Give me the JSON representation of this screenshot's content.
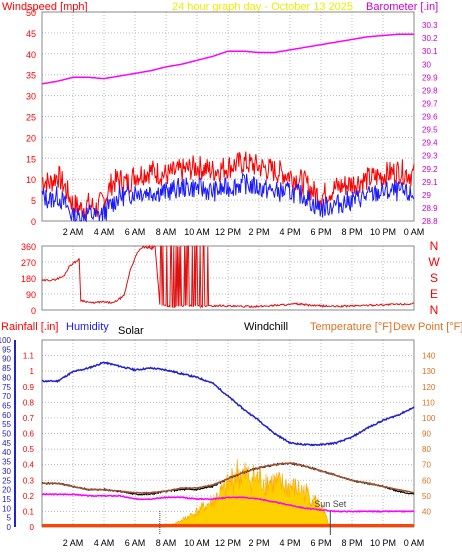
{
  "header": {
    "left_label": "Windspeed [mph]",
    "center_label": "24 hour graph day - October 13 2025",
    "right_label": "Barometer [.in]"
  },
  "lower_header": {
    "rain_label": "Rainfall [.in]",
    "humidity_label": "Humidity",
    "solar_label": "Solar",
    "windchill_label": "Windchill",
    "temp_label": "Temperature [°F]",
    "dew_label": "Dew Point [°F]"
  },
  "annotation": {
    "sunset": "Sun Set"
  },
  "colors": {
    "wind_gust": "#ff0000",
    "wind_avg": "#1a1aff",
    "barometer": "#ff00ff",
    "direction": "#dd1111",
    "humidity": "#2222cc",
    "temperature": "#a0522d",
    "windchill": "#000000",
    "dewpoint": "#ff00ff",
    "solar": "#ffd000",
    "solar_dark": "#ffa500",
    "rain": "#ff4400",
    "grid": "#bbbbbb",
    "axis_left": "#ff0000",
    "axis_right": "#cc00cc",
    "rain_axis": "#2222cc",
    "temp_axis": "#e07020"
  },
  "chart_data": [
    {
      "id": "wind",
      "type": "line",
      "xlabel": "",
      "x_ticks": [
        "2 AM",
        "4 AM",
        "6 AM",
        "8 AM",
        "10 AM",
        "12 PM",
        "2 PM",
        "4 PM",
        "6 PM",
        "8 PM",
        "10 PM",
        "0 AM"
      ],
      "ylabel_left": "Windspeed [mph]",
      "ylim_left": [
        0,
        50
      ],
      "y_ticks_left": [
        "0",
        "5",
        "10",
        "15",
        "20",
        "25",
        "30",
        "35",
        "40",
        "45",
        "50"
      ],
      "ylabel_right": "Barometer [.in]",
      "ylim_right": [
        28.8,
        30.4
      ],
      "y_ticks_right": [
        "28.8",
        "28.9",
        "29",
        "29.1",
        "29.2",
        "29.3",
        "29.4",
        "29.5",
        "29.6",
        "29.7",
        "29.8",
        "29.9",
        "30",
        "30.1",
        "30.2",
        "30.3"
      ],
      "grid": true,
      "series": [
        {
          "key": "gust",
          "x": [
            0,
            0.5,
            1,
            1.5,
            2,
            2.5,
            3,
            3.5,
            4,
            4.5,
            5,
            5.5,
            6,
            7,
            8,
            9,
            10,
            11,
            12,
            13,
            14,
            15,
            16,
            17,
            17.5,
            18,
            19,
            20,
            21,
            22,
            23,
            24
          ],
          "values": [
            10,
            9,
            11,
            8,
            4,
            3,
            4,
            3,
            5,
            9,
            10,
            9,
            11,
            12,
            11,
            12,
            13,
            12,
            13,
            14,
            13,
            12,
            11,
            9,
            7,
            6,
            8,
            9,
            10,
            11,
            12,
            11
          ]
        },
        {
          "key": "avg",
          "x": [
            0,
            0.5,
            1,
            1.5,
            2,
            2.5,
            3,
            3.5,
            4,
            4.5,
            5,
            5.5,
            6,
            7,
            8,
            9,
            10,
            11,
            12,
            13,
            14,
            15,
            16,
            17,
            17.5,
            18,
            19,
            20,
            21,
            22,
            23,
            24
          ],
          "values": [
            6,
            5,
            6,
            4,
            1,
            1,
            2,
            1,
            2,
            4,
            6,
            6,
            7,
            7,
            7,
            8,
            8,
            7,
            8,
            9,
            8,
            7,
            7,
            6,
            4,
            3,
            4,
            5,
            6,
            7,
            7,
            6
          ]
        },
        {
          "key": "barometer",
          "axis": "right",
          "x": [
            0,
            1,
            2,
            3,
            4,
            5,
            6,
            7,
            8,
            9,
            10,
            11,
            12,
            13,
            14,
            15,
            16,
            17,
            18,
            19,
            20,
            21,
            22,
            23,
            24
          ],
          "values": [
            29.85,
            29.87,
            29.9,
            29.9,
            29.89,
            29.91,
            29.93,
            29.95,
            29.98,
            30.0,
            30.03,
            30.06,
            30.1,
            30.1,
            30.09,
            30.09,
            30.11,
            30.13,
            30.15,
            30.17,
            30.19,
            30.21,
            30.22,
            30.23,
            30.23
          ]
        }
      ]
    },
    {
      "id": "direction",
      "type": "line",
      "ylim": [
        0,
        360
      ],
      "y_ticks": [
        "0",
        "90",
        "180",
        "270",
        "360"
      ],
      "compass": [
        "N",
        "W",
        "S",
        "E",
        "N"
      ],
      "grid": true,
      "series": [
        {
          "key": "direction",
          "x": [
            0,
            0.8,
            1.4,
            1.8,
            2.4,
            2.5,
            3.2,
            3.8,
            3.9,
            4.6,
            5.3,
            5.7,
            6.2,
            6.5,
            7.0,
            7.3,
            7.6,
            8.4,
            9.4,
            10.4,
            11.5,
            12.5,
            14,
            15.6,
            16,
            16.4,
            17.5,
            19,
            20.5,
            22,
            24
          ],
          "values": [
            165,
            170,
            190,
            250,
            285,
            55,
            40,
            45,
            45,
            40,
            80,
            230,
            330,
            355,
            345,
            355,
            30,
            20,
            25,
            20,
            25,
            20,
            20,
            30,
            30,
            35,
            25,
            20,
            25,
            30,
            35
          ]
        }
      ]
    },
    {
      "id": "temperature",
      "type": "line",
      "ylim_left": [
        0,
        1.2
      ],
      "y_ticks_left": [
        "0",
        "0.1",
        "0.2",
        "0.3",
        "0.4",
        "0.5",
        "0.6",
        "0.7",
        "0.8",
        "0.9",
        "1",
        "1.1"
      ],
      "ylim_left_humidity": [
        0,
        100
      ],
      "y_ticks_left_humidity": [
        "0",
        "5",
        "10",
        "15",
        "20",
        "25",
        "30",
        "35",
        "40",
        "45",
        "50",
        "55",
        "60",
        "65",
        "70",
        "75",
        "80",
        "85",
        "90",
        "95",
        "100"
      ],
      "ylim_right": [
        30,
        150
      ],
      "y_ticks_right": [
        "40",
        "50",
        "60",
        "70",
        "80",
        "90",
        "100",
        "110",
        "120",
        "130",
        "140"
      ],
      "grid": true,
      "series": [
        {
          "key": "humidity",
          "axis": "humidity",
          "x": [
            0,
            1,
            2,
            3,
            4,
            5,
            6,
            7,
            8,
            9,
            10,
            11,
            12,
            13,
            14,
            15,
            16,
            17,
            18,
            19,
            20,
            21,
            22,
            23,
            24
          ],
          "values": [
            78,
            78,
            83,
            85,
            88,
            86,
            84,
            85,
            84,
            82,
            80,
            77,
            70,
            63,
            57,
            50,
            45,
            44,
            44,
            45,
            48,
            53,
            57,
            60,
            64
          ]
        },
        {
          "key": "temperature",
          "axis": "right",
          "x": [
            0,
            1,
            2,
            3,
            4,
            5,
            6,
            7,
            8,
            9,
            10,
            11,
            12,
            13,
            14,
            15,
            16,
            17,
            18,
            19,
            20,
            21,
            22,
            23,
            24
          ],
          "values": [
            58,
            58,
            56,
            54,
            54,
            53,
            52,
            52,
            53,
            55,
            55,
            57,
            61,
            65,
            68,
            70,
            71,
            69,
            66,
            63,
            60,
            58,
            56,
            54,
            52
          ]
        },
        {
          "key": "windchill",
          "axis": "right",
          "x": [
            0,
            1,
            2,
            3,
            4,
            5,
            6,
            7,
            8,
            9,
            10,
            11,
            12,
            13,
            14,
            15,
            16,
            17,
            18,
            19,
            20,
            21,
            22,
            23,
            24
          ],
          "values": [
            58,
            58,
            56,
            54,
            54,
            53,
            51,
            51,
            53,
            54,
            54,
            56,
            61,
            65,
            68,
            70,
            71,
            69,
            66,
            63,
            60,
            58,
            56,
            53,
            51
          ]
        },
        {
          "key": "dewpoint",
          "axis": "right",
          "x": [
            0,
            1,
            2,
            3,
            4,
            5,
            6,
            7,
            8,
            9,
            10,
            11,
            12,
            13,
            14,
            15,
            16,
            17,
            18,
            19,
            20,
            21,
            22,
            23,
            24
          ],
          "values": [
            51,
            51,
            51,
            50,
            50,
            50,
            48,
            48,
            49,
            49,
            48,
            48,
            49,
            49,
            48,
            46,
            44,
            42,
            41,
            40,
            40,
            40,
            40,
            40,
            40
          ]
        },
        {
          "key": "solar",
          "type": "area",
          "axis": "left",
          "x": [
            8.0,
            9.0,
            10.0,
            11.0,
            12.0,
            12.5,
            13.0,
            14.0,
            15.0,
            16.0,
            17.0,
            18.0,
            18.6
          ],
          "values": [
            0,
            0.05,
            0.12,
            0.2,
            0.32,
            0.42,
            0.4,
            0.37,
            0.34,
            0.31,
            0.27,
            0.16,
            0
          ]
        },
        {
          "key": "rain",
          "axis": "left",
          "x": [
            0,
            24
          ],
          "values": [
            0,
            0
          ]
        }
      ],
      "markers": [
        {
          "label": "",
          "x": 7.6
        },
        {
          "label": "Sun Set",
          "x": 18.6
        }
      ]
    }
  ]
}
